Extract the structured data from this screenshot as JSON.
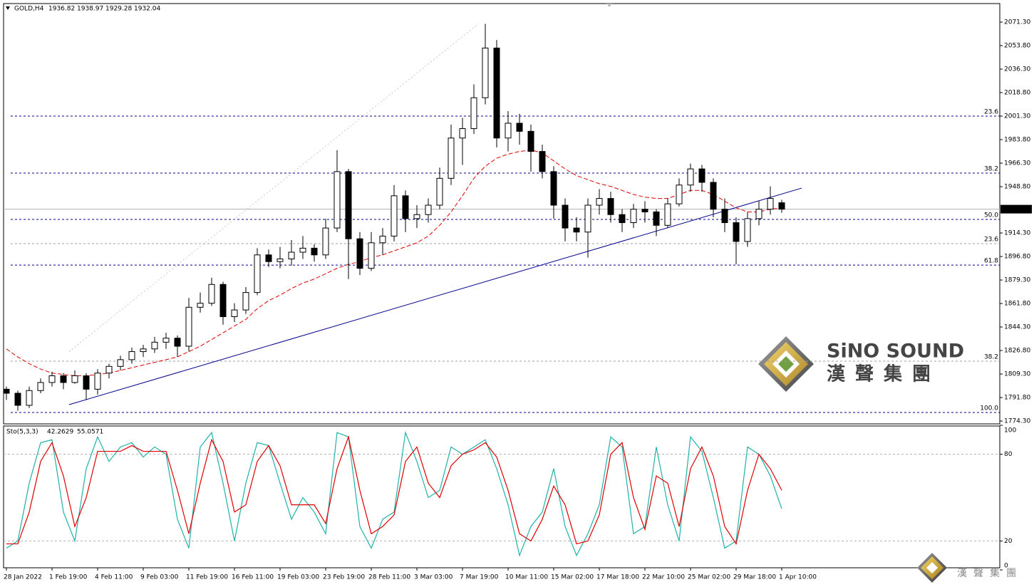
{
  "chart_data": [
    {
      "type": "candlestick",
      "symbol": "GOLD,H4",
      "categories": [
        "28 Jan 2022",
        null,
        null,
        null,
        "1 Feb 19:00",
        null,
        null,
        null,
        "4 Feb 11:00",
        null,
        null,
        null,
        "9 Feb 03:00",
        null,
        null,
        null,
        "11 Feb 19:00",
        null,
        null,
        null,
        "16 Feb 11:00",
        null,
        null,
        null,
        "19 Feb 03:00",
        null,
        null,
        null,
        "23 Feb 19:00",
        null,
        null,
        null,
        "28 Feb 11:00",
        null,
        null,
        null,
        "3 Mar 03:00",
        null,
        null,
        null,
        "7 Mar 19:00",
        null,
        null,
        null,
        "10 Mar 11:00",
        null,
        null,
        null,
        "15 Mar 02:00",
        null,
        null,
        null,
        "17 Mar 18:00",
        null,
        null,
        null,
        "22 Mar 10:00",
        null,
        null,
        null,
        "25 Mar 02:00",
        null,
        null,
        null,
        "29 Mar 18:00",
        null,
        null,
        null,
        "1 Apr 10:00"
      ],
      "open": [
        1798,
        1795,
        1786,
        1797,
        1803,
        1808,
        1803,
        1808,
        1798,
        1810,
        1815,
        1820,
        1826,
        1828,
        1833,
        1836,
        1830,
        1859,
        1862,
        1876,
        1852,
        1857,
        1870,
        1898,
        1893,
        1895,
        1900,
        1903,
        1898,
        1918,
        1960,
        1910,
        1888,
        1907,
        1912,
        1942,
        1925,
        1928,
        1935,
        1955,
        1985,
        1992,
        2015,
        2052,
        1985,
        1996,
        1990,
        1975,
        1960,
        1935,
        1918,
        1915,
        1935,
        1940,
        1928,
        1922,
        1932,
        1930,
        1920,
        1936,
        1950,
        1962,
        1952,
        1932,
        1922,
        1908,
        1925,
        1932,
        1936.82
      ],
      "high": [
        1800,
        1797,
        1800,
        1806,
        1811,
        1810,
        1812,
        1810,
        1813,
        1817,
        1823,
        1829,
        1831,
        1837,
        1840,
        1838,
        1866,
        1870,
        1881,
        1878,
        1862,
        1874,
        1903,
        1902,
        1904,
        1909,
        1912,
        1906,
        1925,
        1976,
        1962,
        1915,
        1915,
        1918,
        1950,
        1946,
        1935,
        1940,
        1963,
        1995,
        2000,
        2025,
        2070,
        2058,
        2005,
        2003,
        1995,
        1980,
        1964,
        1940,
        1926,
        1940,
        1947,
        1945,
        1932,
        1936,
        1938,
        1932,
        1940,
        1955,
        1966,
        1965,
        1955,
        1940,
        1926,
        1930,
        1938,
        1949,
        1938.97
      ],
      "low": [
        1790,
        1782,
        1784,
        1795,
        1800,
        1798,
        1802,
        1790,
        1794,
        1806,
        1812,
        1817,
        1822,
        1825,
        1828,
        1822,
        1826,
        1855,
        1860,
        1846,
        1848,
        1854,
        1868,
        1889,
        1888,
        1890,
        1895,
        1893,
        1895,
        1915,
        1880,
        1883,
        1886,
        1898,
        1908,
        1915,
        1918,
        1922,
        1932,
        1950,
        1965,
        1988,
        2010,
        1978,
        1975,
        1980,
        1960,
        1955,
        1925,
        1908,
        1908,
        1896,
        1928,
        1922,
        1915,
        1918,
        1922,
        1912,
        1918,
        1934,
        1945,
        1945,
        1926,
        1915,
        1891,
        1904,
        1920,
        1928,
        1929.28
      ],
      "close": [
        1795,
        1786,
        1797,
        1803,
        1808,
        1803,
        1808,
        1798,
        1810,
        1815,
        1820,
        1826,
        1828,
        1833,
        1836,
        1830,
        1859,
        1862,
        1876,
        1852,
        1857,
        1870,
        1898,
        1893,
        1895,
        1900,
        1903,
        1898,
        1918,
        1960,
        1910,
        1888,
        1907,
        1912,
        1942,
        1925,
        1928,
        1935,
        1955,
        1985,
        1992,
        2015,
        2052,
        1985,
        1996,
        1990,
        1975,
        1960,
        1935,
        1918,
        1915,
        1935,
        1940,
        1928,
        1922,
        1932,
        1930,
        1920,
        1936,
        1950,
        1962,
        1952,
        1932,
        1922,
        1908,
        1925,
        1932,
        1940,
        1932.04
      ],
      "moving_average": {
        "color": "#e00000",
        "values": [
          1828,
          1822,
          1817,
          1813,
          1810,
          1809,
          1808,
          1808,
          1809,
          1810,
          1812,
          1814,
          1816,
          1818,
          1820,
          1822,
          1826,
          1830,
          1835,
          1840,
          1845,
          1850,
          1858,
          1864,
          1868,
          1873,
          1877,
          1880,
          1884,
          1888,
          1891,
          1893,
          1896,
          1898,
          1901,
          1904,
          1907,
          1912,
          1920,
          1930,
          1942,
          1955,
          1964,
          1970,
          1973,
          1975,
          1976,
          1974,
          1968,
          1962,
          1957,
          1954,
          1951,
          1949,
          1946,
          1943,
          1941,
          1940,
          1940,
          1943,
          1946,
          1946,
          1943,
          1938,
          1933,
          1930,
          1930,
          1932,
          1933
        ]
      },
      "trendlines": [
        {
          "x": [
            5.5,
            69.75
          ],
          "y": [
            1786.5,
            1947.7
          ],
          "color": "#00008b",
          "dashed": false
        },
        {
          "x": [
            5.5,
            41.4
          ],
          "y": [
            1826,
            2070
          ],
          "color": "#c8c8c8",
          "dashed": true
        }
      ],
      "fib_levels": [
        {
          "value": 2001.3,
          "label": "23.6",
          "color": "#00008b"
        },
        {
          "value": 1958.9,
          "label": "38.2",
          "color": "#00008b"
        },
        {
          "value": 1924.4,
          "label": "50.0",
          "color": "#00008b"
        },
        {
          "value": 1890.4,
          "label": "61.8",
          "color": "#00008b"
        },
        {
          "value": 1906.4,
          "label": "23.6",
          "color": "#a0a0a0"
        },
        {
          "value": 1818.9,
          "label": "38.2",
          "color": "#a0a0a0"
        },
        {
          "value": 1780.7,
          "label": "100.0",
          "color": "#00008b"
        }
      ],
      "ylim": [
        1772.2,
        2085.1
      ],
      "yticks": [
        {
          "value": 2071.3,
          "label": "2071.30"
        },
        {
          "value": 2053.8,
          "label": "2053.80"
        },
        {
          "value": 2036.3,
          "label": "2036.30"
        },
        {
          "value": 2018.8,
          "label": "2018.80"
        },
        {
          "value": 2001.3,
          "label": "2001.30"
        },
        {
          "value": 1983.8,
          "label": "1983.80"
        },
        {
          "value": 1966.3,
          "label": "1966.30"
        },
        {
          "value": 1948.8,
          "label": "1948.80"
        },
        {
          "value": 1914.3,
          "label": "1914.30"
        },
        {
          "value": 1896.8,
          "label": "1896.80"
        },
        {
          "value": 1879.3,
          "label": "1879.30"
        },
        {
          "value": 1861.8,
          "label": "1861.80"
        },
        {
          "value": 1844.3,
          "label": "1844.30"
        },
        {
          "value": 1826.8,
          "label": "1826.80"
        },
        {
          "value": 1809.3,
          "label": "1809.30"
        },
        {
          "value": 1791.8,
          "label": "1791.80"
        },
        {
          "value": 1774.3,
          "label": "1774.30"
        }
      ]
    },
    {
      "type": "line",
      "title": "Sto(5,3,3)",
      "series": [
        {
          "color": "#20b2aa",
          "values": [
            15,
            20,
            60,
            88,
            90,
            40,
            20,
            70,
            92,
            75,
            85,
            88,
            78,
            85,
            80,
            35,
            15,
            85,
            95,
            60,
            20,
            60,
            88,
            86,
            60,
            35,
            50,
            40,
            25,
            95,
            92,
            30,
            15,
            35,
            40,
            95,
            75,
            50,
            55,
            85,
            80,
            85,
            90,
            70,
            45,
            10,
            30,
            40,
            70,
            30,
            10,
            25,
            45,
            92,
            85,
            25,
            30,
            85,
            45,
            20,
            92,
            82,
            50,
            15,
            20,
            85,
            80,
            65,
            42.2629
          ]
        },
        {
          "color": "#e00000",
          "values": [
            18,
            18,
            40,
            75,
            88,
            65,
            30,
            50,
            82,
            82,
            82,
            86,
            82,
            82,
            82,
            55,
            25,
            60,
            90,
            75,
            40,
            45,
            75,
            86,
            72,
            45,
            45,
            45,
            32,
            70,
            92,
            55,
            25,
            30,
            38,
            75,
            85,
            60,
            50,
            72,
            80,
            83,
            88,
            78,
            55,
            25,
            20,
            35,
            58,
            45,
            18,
            20,
            38,
            80,
            88,
            50,
            28,
            65,
            60,
            30,
            70,
            85,
            65,
            30,
            18,
            55,
            80,
            70,
            55.0571
          ]
        }
      ],
      "levels": [
        80,
        20
      ],
      "ylim": [
        0,
        100
      ],
      "yticks": [
        100,
        80,
        20,
        0
      ]
    }
  ],
  "watermark": {
    "brand": "SiNO SOUND",
    "chinese": "漢聲集團"
  },
  "footer_logo": {
    "chinese": "漢聲集團"
  }
}
